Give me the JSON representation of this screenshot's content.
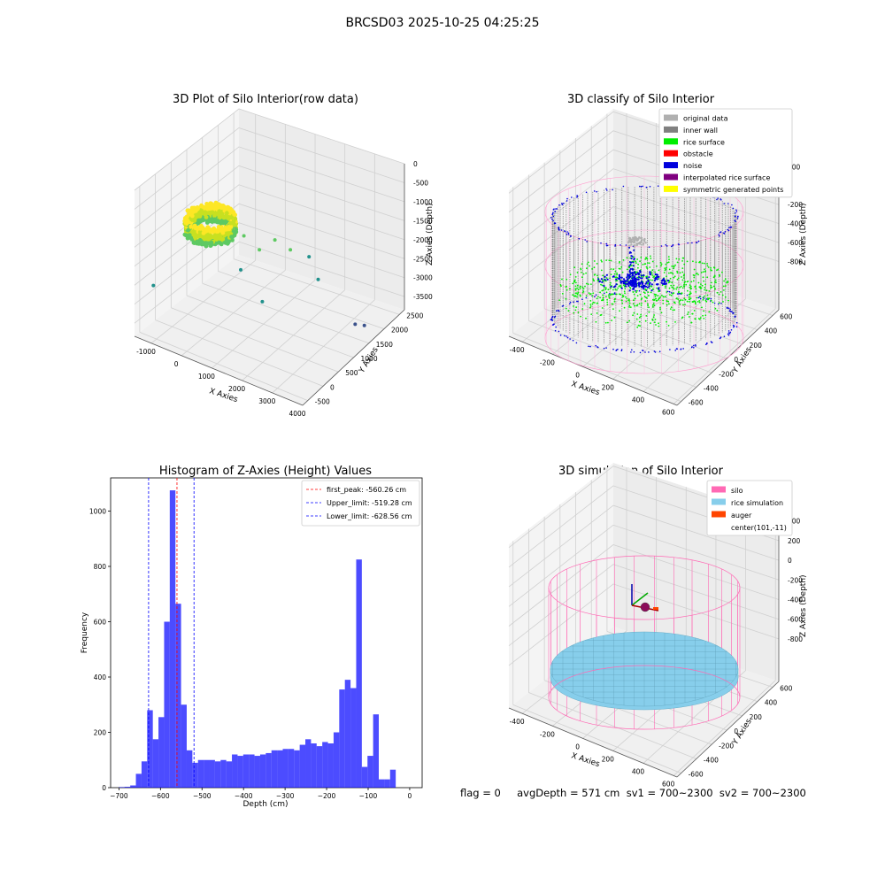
{
  "figure": {
    "suptitle": "BRCSD03 2025-10-25 04:25:25",
    "footer": "flag = 0     avgDepth = 571 cm  sv1 = 700~2300  sv2 = 700~2300"
  },
  "chart_data": [
    {
      "type": "scatter3d",
      "title": "3D Plot of Silo Interior(row data)",
      "xlabel": "X Axies",
      "ylabel": "Y Axies",
      "zlabel": "Z Axies (Depth)",
      "x_ticks": [
        "-1000",
        "0",
        "1000",
        "2000",
        "3000",
        "4000"
      ],
      "y_ticks": [
        "-500",
        "0",
        "500",
        "1000",
        "1500",
        "2000",
        "2500"
      ],
      "z_ticks": [
        "0",
        "-500",
        "-1000",
        "-1500",
        "-2000",
        "-2500",
        "-3000",
        "-3500"
      ],
      "colormap": [
        "#3b528b",
        "#21918c",
        "#5ec962",
        "#c8e020",
        "#fde725"
      ],
      "outliers": [
        {
          "x": -1100,
          "y": -300,
          "z": -2500
        },
        {
          "x": 600,
          "y": 900,
          "z": -1500
        },
        {
          "x": 900,
          "y": 1100,
          "z": -1900
        },
        {
          "x": 1200,
          "y": 1300,
          "z": -1700
        },
        {
          "x": 700,
          "y": 700,
          "z": -2200
        },
        {
          "x": 1500,
          "y": 1500,
          "z": -2000
        },
        {
          "x": 1800,
          "y": 1800,
          "z": -2300
        },
        {
          "x": 1400,
          "y": 700,
          "z": -2800
        },
        {
          "x": 2300,
          "y": 1600,
          "z": -2600
        },
        {
          "x": 3500,
          "y": 1600,
          "z": -3400
        },
        {
          "x": 3700,
          "y": 1700,
          "z": -3450
        }
      ]
    },
    {
      "type": "scatter3d",
      "title": "3D classify of Silo Interior",
      "xlabel": "X Axies",
      "ylabel": "Y Axies",
      "zlabel": "Z Axies (Depth)",
      "x_ticks": [
        "-400",
        "-200",
        "0",
        "200",
        "400",
        "600"
      ],
      "y_ticks": [
        "-600",
        "-400",
        "-200",
        "0",
        "200",
        "400",
        "600"
      ],
      "z_ticks": [
        "200",
        "0",
        "-200",
        "-400",
        "-600",
        "-800"
      ],
      "legend": [
        {
          "label": "original data",
          "color": "#b0b0b0"
        },
        {
          "label": "inner wall",
          "color": "#808080"
        },
        {
          "label": "rice surface",
          "color": "#00ee00"
        },
        {
          "label": "obstacle",
          "color": "#ff0000"
        },
        {
          "label": "noise",
          "color": "#0000dd"
        },
        {
          "label": "interpolated rice surface",
          "color": "#800080"
        },
        {
          "label": "symmetric generated points",
          "color": "#ffff00"
        }
      ],
      "legend_loc": "upper right"
    },
    {
      "type": "bar",
      "title": "Histogram of Z-Axies (Height) Values",
      "xlabel": "Depth (cm)",
      "ylabel": "Frequency",
      "xlim": [
        -720,
        30
      ],
      "ylim": [
        0,
        1120
      ],
      "x_ticks": [
        -700,
        -600,
        -500,
        -400,
        -300,
        -200,
        -100,
        0
      ],
      "y_ticks": [
        0,
        200,
        400,
        600,
        800,
        1000
      ],
      "bin_start": -700,
      "bin_width": 13.6,
      "values": [
        2,
        3,
        8,
        50,
        95,
        280,
        175,
        255,
        600,
        1075,
        665,
        300,
        135,
        90,
        100,
        100,
        100,
        95,
        100,
        95,
        120,
        115,
        120,
        120,
        115,
        120,
        125,
        135,
        135,
        140,
        140,
        135,
        155,
        175,
        160,
        150,
        165,
        160,
        200,
        355,
        390,
        360,
        825,
        75,
        115,
        265,
        30,
        30,
        65
      ],
      "color": "#0000ff",
      "legend": [
        {
          "label": "first_peak: -560.26 cm",
          "value": -560.26,
          "color": "#ff0000"
        },
        {
          "label": "Upper_limit: -519.28 cm",
          "value": -519.28,
          "color": "#0000ff"
        },
        {
          "label": "Lower_limit: -628.56 cm",
          "value": -628.56,
          "color": "#0000ff"
        }
      ],
      "legend_loc": "upper right"
    },
    {
      "type": "surface3d",
      "title": "3D simulation of Silo Interior",
      "xlabel": "X Axies",
      "ylabel": "Y Axies",
      "zlabel": "Z Axies (Depth)",
      "x_ticks": [
        "-400",
        "-200",
        "0",
        "200",
        "400",
        "600"
      ],
      "y_ticks": [
        "-600",
        "-400",
        "-200",
        "0",
        "200",
        "400",
        "600"
      ],
      "z_ticks": [
        "400",
        "200",
        "0",
        "-200",
        "-400",
        "-600",
        "-800"
      ],
      "legend": [
        {
          "label": "silo",
          "color": "#ff69b4"
        },
        {
          "label": "rice simulation",
          "color": "#87ceeb"
        },
        {
          "label": "auger",
          "color": "#ff4500"
        },
        {
          "label": "center(101,-11)",
          "color": ""
        }
      ],
      "legend_loc": "upper right"
    }
  ]
}
